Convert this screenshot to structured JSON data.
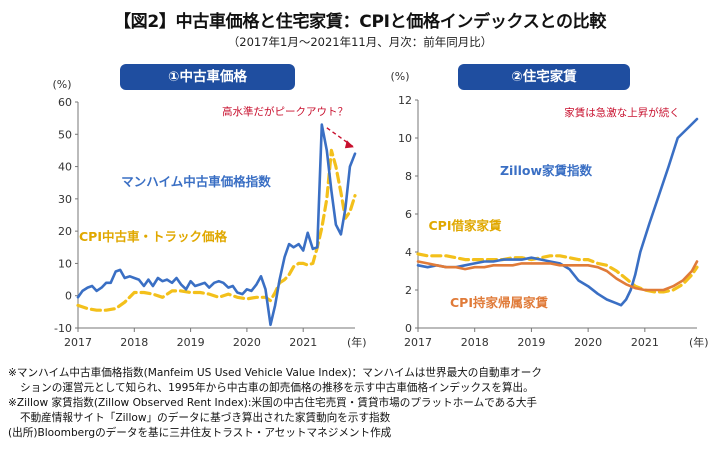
{
  "title": "【図2】中古車価格と住宅家賃：CPIと価格インデックスとの比較",
  "subtitle": "（2017年1月～2021年11月、月次：前年同月比）",
  "chart_data": [
    {
      "type": "line",
      "panel_title": "①中古車価格",
      "unit_label": "(%)",
      "x_suffix": "(年)",
      "x_ticks": [
        "2017",
        "2018",
        "2019",
        "2020",
        "2021"
      ],
      "xlim": [
        2017.0,
        2021.92
      ],
      "ylim": [
        -10,
        60
      ],
      "y_ticks": [
        -10,
        0,
        10,
        20,
        30,
        40,
        50,
        60
      ],
      "grid": false,
      "annotation": "高水準だがピークアウト？",
      "series": [
        {
          "name": "マンハイム中古車価格指数",
          "color": "#3a6fc4",
          "style": "solid",
          "points": [
            [
              2017.0,
              -0.5
            ],
            [
              2017.08,
              1.5
            ],
            [
              2017.17,
              2.5
            ],
            [
              2017.25,
              3.0
            ],
            [
              2017.33,
              1.5
            ],
            [
              2017.42,
              2.5
            ],
            [
              2017.5,
              4.0
            ],
            [
              2017.58,
              4.0
            ],
            [
              2017.67,
              7.5
            ],
            [
              2017.75,
              8.0
            ],
            [
              2017.83,
              5.5
            ],
            [
              2017.92,
              6.0
            ],
            [
              2018.0,
              5.5
            ],
            [
              2018.08,
              5.0
            ],
            [
              2018.17,
              3.0
            ],
            [
              2018.25,
              5.0
            ],
            [
              2018.33,
              3.0
            ],
            [
              2018.42,
              5.5
            ],
            [
              2018.5,
              4.5
            ],
            [
              2018.58,
              5.0
            ],
            [
              2018.67,
              4.0
            ],
            [
              2018.75,
              5.5
            ],
            [
              2018.83,
              3.5
            ],
            [
              2018.92,
              2.0
            ],
            [
              2019.0,
              4.5
            ],
            [
              2019.08,
              3.0
            ],
            [
              2019.17,
              3.5
            ],
            [
              2019.25,
              4.0
            ],
            [
              2019.33,
              2.5
            ],
            [
              2019.42,
              4.0
            ],
            [
              2019.5,
              4.5
            ],
            [
              2019.58,
              4.0
            ],
            [
              2019.67,
              2.5
            ],
            [
              2019.75,
              3.0
            ],
            [
              2019.83,
              1.0
            ],
            [
              2019.92,
              0.5
            ],
            [
              2020.0,
              2.0
            ],
            [
              2020.08,
              1.5
            ],
            [
              2020.17,
              3.5
            ],
            [
              2020.25,
              6.0
            ],
            [
              2020.33,
              2.0
            ],
            [
              2020.42,
              -9.0
            ],
            [
              2020.5,
              -3.0
            ],
            [
              2020.58,
              5.0
            ],
            [
              2020.67,
              12.0
            ],
            [
              2020.75,
              16.0
            ],
            [
              2020.83,
              15.0
            ],
            [
              2020.92,
              16.0
            ],
            [
              2021.0,
              14.0
            ],
            [
              2021.08,
              19.5
            ],
            [
              2021.17,
              14.5
            ],
            [
              2021.25,
              15.0
            ],
            [
              2021.33,
              53.0
            ],
            [
              2021.42,
              45.0
            ],
            [
              2021.5,
              32.5
            ],
            [
              2021.58,
              22.0
            ],
            [
              2021.67,
              19.0
            ],
            [
              2021.75,
              27.0
            ],
            [
              2021.83,
              40.0
            ],
            [
              2021.92,
              44.0
            ]
          ]
        },
        {
          "name": "CPI中古車・トラック価格",
          "color": "#f3c01b",
          "style": "dashed",
          "points": [
            [
              2017.0,
              -3.0
            ],
            [
              2017.17,
              -4.0
            ],
            [
              2017.33,
              -4.5
            ],
            [
              2017.5,
              -4.5
            ],
            [
              2017.67,
              -4.0
            ],
            [
              2017.83,
              -2.0
            ],
            [
              2018.0,
              1.0
            ],
            [
              2018.17,
              1.0
            ],
            [
              2018.33,
              0.5
            ],
            [
              2018.5,
              -0.5
            ],
            [
              2018.67,
              1.5
            ],
            [
              2018.83,
              1.5
            ],
            [
              2019.0,
              1.0
            ],
            [
              2019.17,
              1.0
            ],
            [
              2019.33,
              0.5
            ],
            [
              2019.5,
              -0.5
            ],
            [
              2019.67,
              0.5
            ],
            [
              2019.83,
              -0.5
            ],
            [
              2020.0,
              -1.0
            ],
            [
              2020.17,
              -0.5
            ],
            [
              2020.33,
              -0.5
            ],
            [
              2020.42,
              -1.5
            ],
            [
              2020.5,
              1.0
            ],
            [
              2020.58,
              4.0
            ],
            [
              2020.67,
              5.0
            ],
            [
              2020.75,
              6.5
            ],
            [
              2020.83,
              9.0
            ],
            [
              2020.92,
              10.0
            ],
            [
              2021.0,
              10.0
            ],
            [
              2021.08,
              9.5
            ],
            [
              2021.17,
              10.0
            ],
            [
              2021.25,
              15.0
            ],
            [
              2021.33,
              21.0
            ],
            [
              2021.42,
              30.0
            ],
            [
              2021.5,
              45.0
            ],
            [
              2021.58,
              40.0
            ],
            [
              2021.67,
              32.0
            ],
            [
              2021.75,
              24.0
            ],
            [
              2021.83,
              26.0
            ],
            [
              2021.92,
              31.0
            ]
          ]
        }
      ]
    },
    {
      "type": "line",
      "panel_title": "②住宅家賃",
      "unit_label": "(%)",
      "x_suffix": "(年)",
      "x_ticks": [
        "2017",
        "2018",
        "2019",
        "2020",
        "2021"
      ],
      "xlim": [
        2017.0,
        2021.92
      ],
      "ylim": [
        0,
        12
      ],
      "y_ticks": [
        0,
        2,
        4,
        6,
        8,
        10,
        12
      ],
      "grid": false,
      "annotation": "家賃は急激な上昇が続く",
      "series": [
        {
          "name": "Zillow家賃指数",
          "color": "#3a6fc4",
          "style": "solid",
          "points": [
            [
              2017.0,
              3.3
            ],
            [
              2017.17,
              3.2
            ],
            [
              2017.33,
              3.3
            ],
            [
              2017.5,
              3.2
            ],
            [
              2017.67,
              3.2
            ],
            [
              2017.83,
              3.3
            ],
            [
              2018.0,
              3.4
            ],
            [
              2018.17,
              3.5
            ],
            [
              2018.33,
              3.5
            ],
            [
              2018.5,
              3.6
            ],
            [
              2018.67,
              3.6
            ],
            [
              2018.83,
              3.6
            ],
            [
              2019.0,
              3.7
            ],
            [
              2019.17,
              3.6
            ],
            [
              2019.33,
              3.5
            ],
            [
              2019.5,
              3.4
            ],
            [
              2019.67,
              3.1
            ],
            [
              2019.83,
              2.5
            ],
            [
              2020.0,
              2.2
            ],
            [
              2020.17,
              1.8
            ],
            [
              2020.33,
              1.5
            ],
            [
              2020.5,
              1.3
            ],
            [
              2020.58,
              1.2
            ],
            [
              2020.67,
              1.5
            ],
            [
              2020.75,
              2.0
            ],
            [
              2020.83,
              2.8
            ],
            [
              2020.92,
              4.0
            ],
            [
              2021.08,
              5.5
            ],
            [
              2021.25,
              7.0
            ],
            [
              2021.42,
              8.5
            ],
            [
              2021.58,
              10.0
            ],
            [
              2021.75,
              10.5
            ],
            [
              2021.92,
              11.0
            ]
          ]
        },
        {
          "name": "CPI借家家賃",
          "color": "#f3c01b",
          "style": "dashed",
          "points": [
            [
              2017.0,
              3.9
            ],
            [
              2017.17,
              3.8
            ],
            [
              2017.33,
              3.8
            ],
            [
              2017.5,
              3.8
            ],
            [
              2017.67,
              3.7
            ],
            [
              2017.83,
              3.6
            ],
            [
              2018.0,
              3.6
            ],
            [
              2018.17,
              3.6
            ],
            [
              2018.33,
              3.6
            ],
            [
              2018.5,
              3.6
            ],
            [
              2018.67,
              3.7
            ],
            [
              2018.83,
              3.7
            ],
            [
              2019.0,
              3.6
            ],
            [
              2019.17,
              3.7
            ],
            [
              2019.33,
              3.8
            ],
            [
              2019.5,
              3.8
            ],
            [
              2019.67,
              3.7
            ],
            [
              2019.83,
              3.6
            ],
            [
              2020.0,
              3.6
            ],
            [
              2020.17,
              3.4
            ],
            [
              2020.33,
              3.3
            ],
            [
              2020.5,
              3.0
            ],
            [
              2020.67,
              2.6
            ],
            [
              2020.83,
              2.2
            ],
            [
              2021.0,
              2.0
            ],
            [
              2021.17,
              1.9
            ],
            [
              2021.33,
              1.9
            ],
            [
              2021.5,
              2.0
            ],
            [
              2021.67,
              2.3
            ],
            [
              2021.83,
              2.8
            ],
            [
              2021.92,
              3.2
            ]
          ]
        },
        {
          "name": "CPI持家帰属家賃",
          "color": "#e07b39",
          "style": "solid",
          "points": [
            [
              2017.0,
              3.5
            ],
            [
              2017.17,
              3.4
            ],
            [
              2017.33,
              3.3
            ],
            [
              2017.5,
              3.2
            ],
            [
              2017.67,
              3.2
            ],
            [
              2017.83,
              3.1
            ],
            [
              2018.0,
              3.2
            ],
            [
              2018.17,
              3.2
            ],
            [
              2018.33,
              3.3
            ],
            [
              2018.5,
              3.3
            ],
            [
              2018.67,
              3.3
            ],
            [
              2018.83,
              3.4
            ],
            [
              2019.0,
              3.4
            ],
            [
              2019.17,
              3.4
            ],
            [
              2019.33,
              3.4
            ],
            [
              2019.5,
              3.3
            ],
            [
              2019.67,
              3.3
            ],
            [
              2019.83,
              3.3
            ],
            [
              2020.0,
              3.3
            ],
            [
              2020.17,
              3.2
            ],
            [
              2020.33,
              3.0
            ],
            [
              2020.5,
              2.6
            ],
            [
              2020.67,
              2.3
            ],
            [
              2020.83,
              2.1
            ],
            [
              2021.0,
              2.0
            ],
            [
              2021.17,
              2.0
            ],
            [
              2021.33,
              2.0
            ],
            [
              2021.5,
              2.2
            ],
            [
              2021.67,
              2.5
            ],
            [
              2021.83,
              3.0
            ],
            [
              2021.92,
              3.5
            ]
          ]
        }
      ]
    }
  ],
  "notes": [
    "※マンハイム中古車価格指数(Manfeim US Used Vehicle Value Index)：マンハイムは世界最大の自動車オーク",
    "ションの運営元として知られ、1995年から中古車の卸売価格の推移を示す中古車価格インデックスを算出。",
    "※Zillow 家賃指数(Zillow Observed Rent Index):米国の中古住宅売買・賃貸市場のプラットホームである大手",
    "不動産情報サイト「Zillow」のデータに基づき算出された家賃動向を示す指数",
    "(出所)Bloombergのデータを基に三井住友トラスト・アセットマネジメント作成"
  ]
}
